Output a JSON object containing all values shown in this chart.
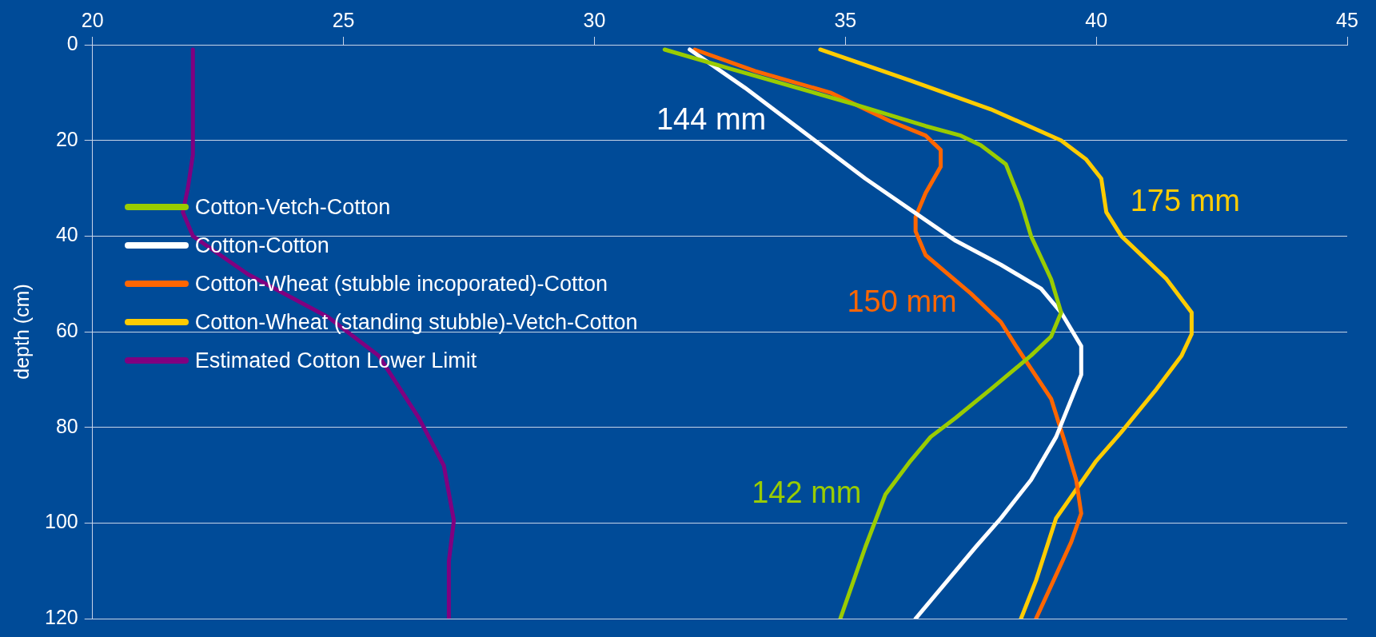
{
  "chart_data": {
    "type": "line",
    "ylabel": "depth (cm)",
    "xlim": [
      20,
      45
    ],
    "xticks": [
      20,
      25,
      30,
      35,
      40,
      45
    ],
    "ylim": [
      120,
      0
    ],
    "yticks": [
      0,
      20,
      40,
      60,
      80,
      100,
      120
    ],
    "grid": "y",
    "legend": "left",
    "marker": "none",
    "line_style": "solid",
    "series": [
      {
        "name": "Cotton-Vetch-Cotton",
        "color": "#99cc00",
        "x": [
          31.4,
          32.7,
          35.2,
          36.6,
          37.3,
          37.7,
          38.2,
          38.5,
          38.7,
          39.1,
          39.3,
          39.1,
          38.7,
          37.9,
          37.2,
          36.7,
          36.3,
          35.8,
          35.4,
          34.9
        ],
        "values": [
          1,
          5,
          12.5,
          17,
          19,
          21,
          25,
          33,
          40,
          49,
          56,
          61,
          65,
          72,
          78,
          82,
          87,
          94,
          105,
          120
        ]
      },
      {
        "name": "Cotton-Cotton",
        "color": "#ffffff",
        "x": [
          31.9,
          33.0,
          35.4,
          37.2,
          38.1,
          38.9,
          39.3,
          39.7,
          39.7,
          39.2,
          38.7,
          38.1,
          37.6,
          36.4
        ],
        "values": [
          1,
          9,
          28,
          41,
          46,
          51,
          56,
          63,
          69,
          82,
          91,
          99,
          105,
          120
        ]
      },
      {
        "name": "Cotton-Wheat (stubble incoporated)-Cotton",
        "color": "#ff6600",
        "x": [
          32.0,
          33.2,
          34.7,
          35.9,
          36.6,
          36.9,
          36.9,
          36.6,
          36.4,
          36.4,
          36.6,
          37.5,
          38.1,
          38.4,
          39.1,
          39.4,
          39.6,
          39.7,
          39.5,
          38.8
        ],
        "values": [
          1,
          5.5,
          10,
          16,
          19,
          22,
          25.5,
          31,
          36,
          39,
          44,
          52,
          58,
          63,
          74,
          84,
          91,
          98,
          104,
          120
        ]
      },
      {
        "name": "Cotton-Wheat (standing stubble)-Vetch-Cotton",
        "color": "#ffcc00",
        "x": [
          34.5,
          36.3,
          37.9,
          39.3,
          39.8,
          40.1,
          40.2,
          40.5,
          41.4,
          41.9,
          41.9,
          41.7,
          41.2,
          40.5,
          40.0,
          39.6,
          39.2,
          38.8,
          38.5
        ],
        "values": [
          1,
          7.5,
          13.5,
          20,
          24,
          28,
          35,
          40,
          49,
          56,
          60.5,
          65,
          72,
          81,
          87,
          93,
          99,
          112,
          120
        ]
      },
      {
        "name": "Estimated Cotton Lower Limit",
        "color": "#800080",
        "x": [
          22.0,
          22.0,
          21.9,
          21.8,
          22.0,
          23.1,
          24.7,
          25.7,
          26.5,
          27.0,
          27.2,
          27.1,
          27.1
        ],
        "values": [
          1,
          23,
          30,
          35,
          40,
          48,
          57,
          65,
          78,
          88,
          99.5,
          108,
          120
        ]
      }
    ],
    "annotations": [
      {
        "text": "144 mm",
        "x": 33.9,
        "y": 16
      },
      {
        "text": "175 mm",
        "x": 40.2,
        "y": 33
      },
      {
        "text": "150 mm",
        "x": 37.7,
        "y": 54
      },
      {
        "text": "142 mm",
        "x": 35.8,
        "y": 94
      }
    ]
  }
}
